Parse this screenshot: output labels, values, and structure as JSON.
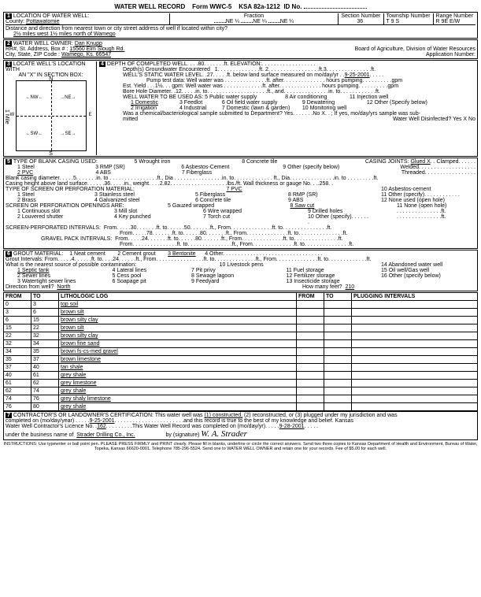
{
  "form": {
    "title": "WATER WELL RECORD",
    "formNo": "Form WWC-5",
    "ksa": "KSA 82a-1212",
    "idLabel": "ID No."
  },
  "s1": {
    "label": "LOCATION OF WATER WELL:",
    "countyLabel": "County:",
    "county": "Pottawatomie",
    "fraction": "Fraction",
    "ne": "NE",
    "qtr": "¼",
    "sectionLabel": "Section Number",
    "section": "36",
    "townshipLabel": "Township Number",
    "township": "T     9     S",
    "rangeLabel": "Range Number",
    "range": "R   9E    E/W",
    "distanceLabel": "Distance and direction from nearest town or city street address of well if located within city?",
    "distance": "2½ miles west 1½ miles north of Wamego"
  },
  "s2": {
    "label": "WATER WELL OWNER:",
    "owner": "Dan Knupp",
    "addrLabel": "RR#, St. Address, Box #",
    "addr": "15560 Elm Slough Rd.",
    "cityLabel": "City, State, ZIP Code",
    "city": "Wamego, Ks.  66547",
    "board": "Board of Agriculture, Division of Water Resources",
    "appLabel": "Application Number:"
  },
  "s3": {
    "label": "LOCATE WELL'S LOCATION WITH",
    "sub": "AN \"X\" IN SECTION BOX:",
    "n": "N",
    "s": "S",
    "e": "E",
    "w": "W",
    "nw": "NW",
    "ne": "NE",
    "sw": "SW",
    "se": "SE",
    "mile": "1 Mile"
  },
  "s4": {
    "label": "DEPTH OF COMPLETED WELL",
    "depth": "80",
    "ft": "ft.",
    "elev": "ELEVATION:",
    "depthsLabel": "Depth(s) Groundwater Encountered",
    "d1": "1",
    "d2": "ft.  2",
    "d3": "ft.3",
    "swlLabel": "WELL'S STATIC WATER LEVEL",
    "swl": "27",
    "swlAfter": "ft. below land surface measured on mo/day/yr",
    "swlDate": "9-25-2001",
    "pumpLabel": "Pump test data:  Well water was",
    "gpm": "gpm",
    "hoursPump": "hours pumping",
    "estLabel": "Est. Yield",
    "est": "1½",
    "estAfter": "gpm: Well water was",
    "boreLabel": "Bore Hole Diameter",
    "bore": "12",
    "in": "in.",
    "useLabel": "WELL WATER TO BE USED AS:",
    "use1": "1 Domestic",
    "use2": "2 Irrigation",
    "use3": "3 Feedlot",
    "use4": "4 Industrial",
    "use5": "5 Public water supply",
    "use6": "6 Oil field water supply",
    "use7": "7 Domestic (lawn & garden)",
    "use8": "8 Air conditioning",
    "use9": "9 Dewatering",
    "use10": "10 Monitoring well",
    "use11": "11 Injection well",
    "use12": "12 Other (Specify below)",
    "chemLabel": "Was a chemical/bacteriological sample submitted to Department?  Yes",
    "noX": "No    X",
    "chemAfter": "; If yes, mo/day/yrs sample was sub-",
    "mitted": "mitted",
    "disinfect": "Water Well Disinfected?   Yes      X            No"
  },
  "s5": {
    "label": "TYPE OF BLANK CASING USED:",
    "c1": "1 Steel",
    "c2": "2 PVC",
    "c3": "3 RMP (SR)",
    "c4": "4 ABS",
    "c5": "5 Wrought iron",
    "c6": "6 Asbestos-Cement",
    "c7": "7 Fiberglass",
    "c8": "8 Concrete tile",
    "c9": "9 Other (specify below)",
    "jointsLabel": "CASING JOINTS:",
    "glued": "Glued   X",
    "clamped": "Clamped",
    "welded": "Welded",
    "threaded": "Threaded",
    "blankDiaLabel": "Blank casing diameter",
    "blankDia": "5",
    "heightLabel": "Casing height above land surface",
    "height": "36",
    "weight": "2.82",
    "wallLabel": "lbs./ft. Wall thickness or gauge No.",
    "wall": ".258",
    "screenLabel": "TYPE OF SCREEN OR PERFORATION MATERIAL:",
    "sc1": "1 Steel",
    "sc2": "2 Brass",
    "sc3": "3 Stainless steel",
    "sc4": "4 Galvanized steel",
    "sc5": "5 Fiberglass",
    "sc6": "6 Concrete tile",
    "sc7": "7 PVC",
    "sc8": "8 RMP (SR)",
    "sc9": "9 ABS",
    "sc10": "10 Asbestos-cement",
    "sc11": "11 Other (specify)",
    "sc12": "12 None used (open hole)",
    "openLabel": "SCREEN OR PERFORATION OPENINGS ARE:",
    "op1": "1 Continuous slot",
    "op2": "2 Louvered shutter",
    "op3": "3 Mill slot",
    "op4": "4 Key punched",
    "op5": "5 Gauzed wrapped",
    "op6": "6 Wire wrapped",
    "op7": "7 Torch cut",
    "op8": "8 Saw cut",
    "op9": "9 Drilled holes",
    "op10": "10 Other (specify)",
    "op11": "11 None (open hole)",
    "spiLabel": "SCREEN-PERFORATED INTERVALS:",
    "spiFrom1": "30",
    "spiTo1": "50",
    "spiFrom2": "78",
    "spiTo2": "80",
    "gpiLabel": "GRAVEL PACK INTERVALS:",
    "gpiFrom1": "24",
    "gpiTo1": "80"
  },
  "s6": {
    "label": "GROUT MATERIAL:",
    "g1": "1 Neat cement",
    "g2": "2 Cement grout",
    "g3": "3 Bentonite",
    "g4": "4 Other",
    "giLabel": "Grout Intervals:  From",
    "giFrom": "4",
    "giTo": "24",
    "contamLabel": "What is the nearest source of possible contamination:",
    "cn1": "1 Septic tank",
    "cn2": "2 Sewer lines",
    "cn3": "3 Watertight sewer lines",
    "cn4": "4 Lateral lines",
    "cn5": "5 Cess pool",
    "cn6": "6 Soapage pit",
    "cn7": "7 Pit privy",
    "cn8": "8 Sewage lagoon",
    "cn9": "9 Feedyard",
    "cn10": "10 Livestock pens",
    "cn11": "11 Fuel storage",
    "cn12": "12 Fertilizer storage",
    "cn13": "13 Insecticide storage",
    "cn14": "14 Abandoned water well",
    "cn15": "15 Oil well/Gas well",
    "cn16": "16 Other (specify below)",
    "dirLabel": "Direction from well?",
    "dir": "North",
    "feetLabel": "How many feet?",
    "feet": "210"
  },
  "log": {
    "hFrom": "FROM",
    "hTo": "TO",
    "hLith": "LITHOLOGIC LOG",
    "hPlug": "PLUGGING INTERVALS",
    "rows": [
      [
        "0",
        "3",
        "top soil"
      ],
      [
        "3",
        "6",
        "brown silt"
      ],
      [
        "6",
        "15",
        "brown silty clay"
      ],
      [
        "15",
        "22",
        "brown silt"
      ],
      [
        "22",
        "32",
        "brown silty clay"
      ],
      [
        "32",
        "34",
        "brown fine sand"
      ],
      [
        "34",
        "35",
        "brown fs-cs-med gravel"
      ],
      [
        "35",
        "37",
        "brown limestone"
      ],
      [
        "37",
        "40",
        "tan shale"
      ],
      [
        "40",
        "61",
        "grey shale"
      ],
      [
        "61",
        "62",
        "grey limestone"
      ],
      [
        "62",
        "74",
        "grey shale"
      ],
      [
        "74",
        "76",
        "grey shaly limestone"
      ],
      [
        "76",
        "80",
        "grey shale"
      ]
    ]
  },
  "s7": {
    "label": "CONTRACTOR'S OR LANDOWNER'S CERTIFICATION: This water well was",
    "opt1": "(1) constructed,",
    "opt2": "(2) reconstructed, or (3) plugged under my jurisdiction and was",
    "compLabel": "completed on (mo/day/year)",
    "compDate": "9-25-2001",
    "trueText": "and this record is true to the best of my knowledge and belief. Kansas",
    "licLabel": "Water Well Contractor's Licence No.",
    "lic": "162",
    "recLabel": "This Water Well Record was completed on (mo/day/yr)",
    "recDate": "9-28-2001",
    "busLabel": "under the business name of",
    "bus": "Strader Drilling Co., Inc.",
    "sigLabel": "by (signature)"
  },
  "instr": "INSTRUCTIONS: Use typewriter or ball point pen. PLEASE PRESS FIRMLY and PRINT clearly. Please fill in blanks, underline or circle the correct answers. Send two three copies to Kansas Department of Health and Environment, Bureau of Water, Topeka, Kansas 66620-0001. Telephone 785-296-5524. Send one to WATER WELL OWNER and retain one for your records. Fee of $5.00 for each well."
}
